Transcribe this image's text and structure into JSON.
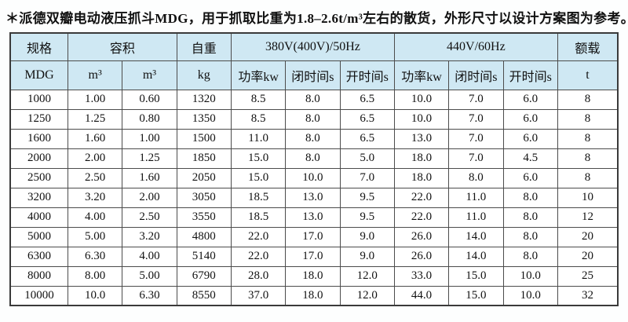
{
  "page": {
    "title": "＊派德双瓣电动液压抓斗MDG，用于抓取比重为1.8–2.6t/m³左右的散货，外形尺寸以设计方案图为参考。"
  },
  "colors": {
    "header_bg": "#cfe8f3",
    "cell_bg": "#ffffff",
    "border": "#4c4c4c",
    "text": "#111111"
  },
  "table": {
    "header_row1": [
      {
        "label": "规格",
        "colspan": 1
      },
      {
        "label": "容积",
        "colspan": 2
      },
      {
        "label": "自重",
        "colspan": 1
      },
      {
        "label": "380V(400V)/50Hz",
        "colspan": 3
      },
      {
        "label": "440V/60Hz",
        "colspan": 3
      },
      {
        "label": "额载",
        "colspan": 1
      }
    ],
    "header_row2": [
      "MDG",
      "m³",
      "m³",
      "kg",
      "功率kw",
      "闭时间s",
      "开时间s",
      "功率kw",
      "闭时间s",
      "开时间s",
      "t"
    ],
    "rows": [
      [
        "1000",
        "1.00",
        "0.60",
        "1320",
        "8.5",
        "8.0",
        "6.5",
        "10.0",
        "7.0",
        "6.0",
        "8"
      ],
      [
        "1250",
        "1.25",
        "0.80",
        "1350",
        "8.5",
        "8.0",
        "6.5",
        "10.0",
        "7.0",
        "6.0",
        "8"
      ],
      [
        "1600",
        "1.60",
        "1.00",
        "1500",
        "11.0",
        "8.0",
        "6.5",
        "13.0",
        "7.0",
        "6.0",
        "8"
      ],
      [
        "2000",
        "2.00",
        "1.25",
        "1850",
        "15.0",
        "8.0",
        "5.0",
        "18.0",
        "7.0",
        "4.5",
        "8"
      ],
      [
        "2500",
        "2.50",
        "1.60",
        "2050",
        "15.0",
        "10.0",
        "7.0",
        "18.0",
        "8.0",
        "6.0",
        "8"
      ],
      [
        "3200",
        "3.20",
        "2.00",
        "3050",
        "18.5",
        "13.0",
        "9.5",
        "22.0",
        "11.0",
        "8.0",
        "10"
      ],
      [
        "4000",
        "4.00",
        "2.50",
        "3550",
        "18.5",
        "13.0",
        "9.5",
        "22.0",
        "11.0",
        "8.0",
        "12"
      ],
      [
        "5000",
        "5.00",
        "3.20",
        "4800",
        "22.0",
        "17.0",
        "9.0",
        "26.0",
        "14.0",
        "8.0",
        "20"
      ],
      [
        "6300",
        "6.30",
        "4.00",
        "5140",
        "22.0",
        "17.0",
        "9.0",
        "26.0",
        "14.0",
        "8.0",
        "20"
      ],
      [
        "8000",
        "8.00",
        "5.00",
        "6790",
        "28.0",
        "18.0",
        "12.0",
        "33.0",
        "15.0",
        "10.0",
        "25"
      ],
      [
        "10000",
        "10.0",
        "6.30",
        "8550",
        "37.0",
        "18.0",
        "12.0",
        "44.0",
        "15.0",
        "10.0",
        "32"
      ]
    ]
  }
}
